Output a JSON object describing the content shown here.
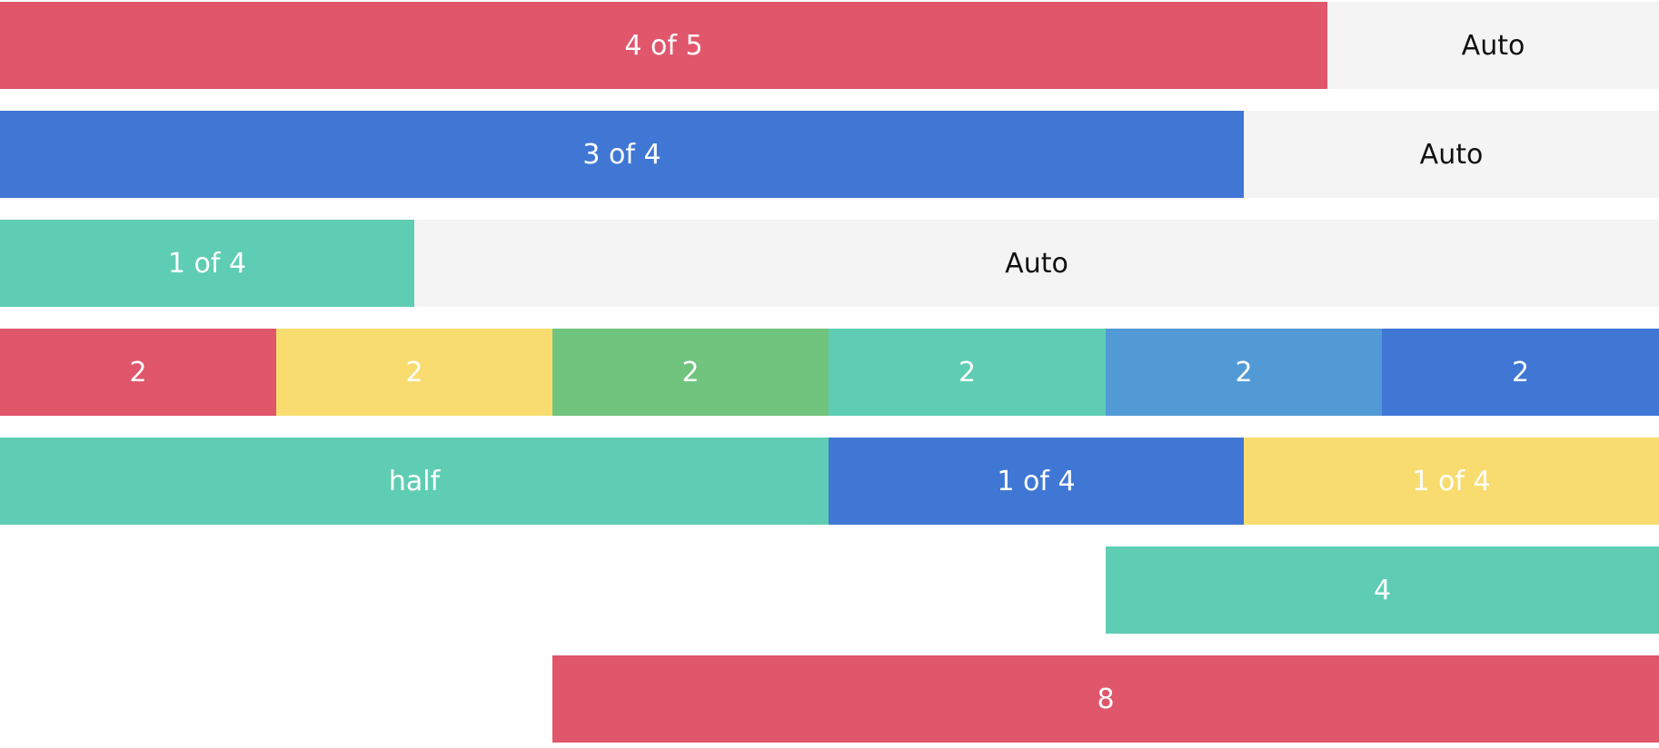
{
  "rows": [
    {
      "cells": [
        {
          "label": "4 of 5"
        },
        {
          "label": "Auto"
        }
      ]
    },
    {
      "cells": [
        {
          "label": "3 of 4"
        },
        {
          "label": "Auto"
        }
      ]
    },
    {
      "cells": [
        {
          "label": "1 of 4"
        },
        {
          "label": "Auto"
        }
      ]
    },
    {
      "cells": [
        {
          "label": "2"
        },
        {
          "label": "2"
        },
        {
          "label": "2"
        },
        {
          "label": "2"
        },
        {
          "label": "2"
        },
        {
          "label": "2"
        }
      ]
    },
    {
      "cells": [
        {
          "label": "half"
        },
        {
          "label": "1 of 4"
        },
        {
          "label": "1 of 4"
        }
      ]
    },
    {
      "cells": [
        {
          "label": "4"
        }
      ]
    },
    {
      "cells": [
        {
          "label": "8"
        }
      ]
    }
  ],
  "colors": {
    "red": "#e0566b",
    "blue": "#4077d5",
    "mint": "#5fcdb3",
    "yellow": "#f8dc70",
    "green": "#70c47d",
    "sky": "#529ad6",
    "auto_bg": "#f4f4f4",
    "auto_text": "#111111",
    "text": "#ffffff"
  }
}
